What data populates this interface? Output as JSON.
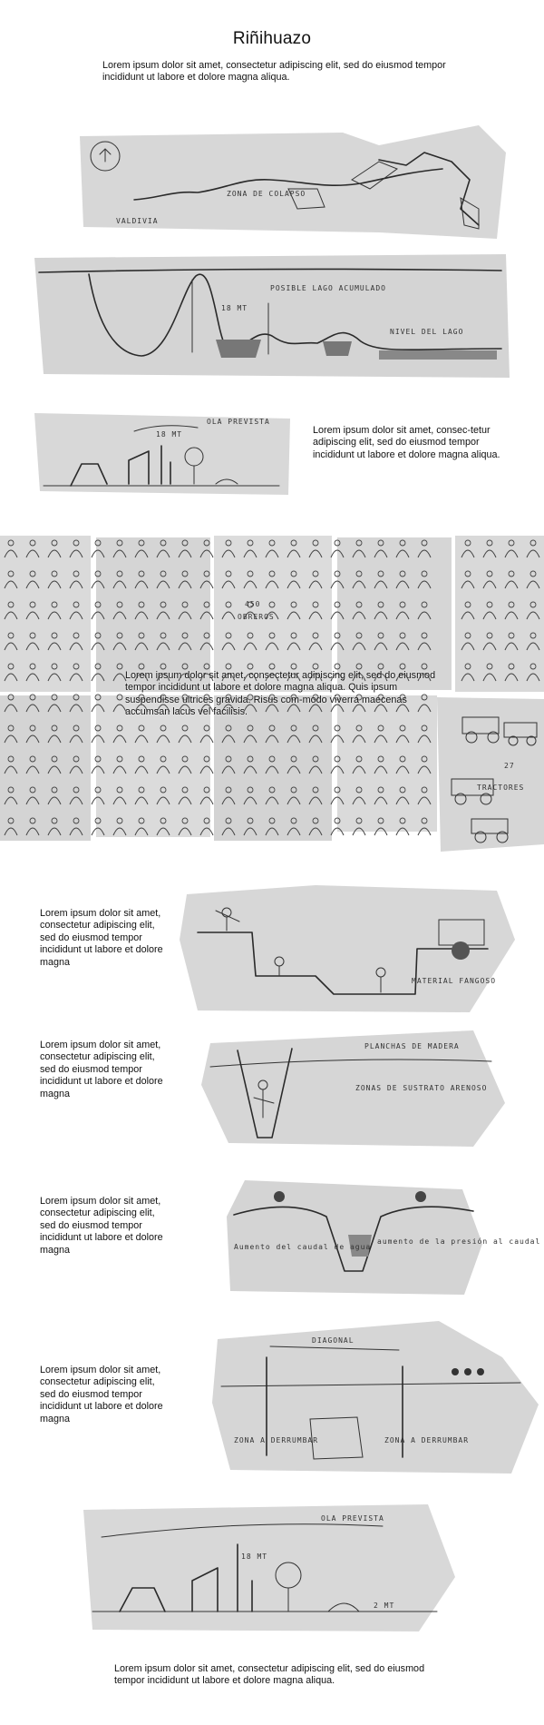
{
  "title": "Riñihuazo",
  "texts": {
    "intro": "Lorem ipsum dolor sit amet, consectetur adipiscing elit, sed do eiusmod tempor incididunt ut labore et dolore magna aliqua.",
    "wave": "Lorem ipsum dolor sit amet, consec-tetur adipiscing elit, sed do eiusmod tempor incididunt ut labore et dolore magna aliqua.",
    "crowd": "Lorem ipsum dolor sit amet, consectetur adipiscing elit, sed do eiusmod tempor incididunt ut labore et dolore magna aliqua. Quis ipsum suspendisse ultrices gravida. Risus com-modo viverra maecenas accumsan lacus vel facilisis.",
    "digging": "Lorem ipsum dolor sit amet, consectetur adipiscing elit, sed do eiusmod tempor incididunt ut labore et dolore magna",
    "trench": "Lorem ipsum dolor sit amet, consectetur adipiscing elit, sed do eiusmod tempor incididunt ut labore et dolore magna",
    "channel": "Lorem ipsum dolor sit amet, consectetur adipiscing elit, sed do eiusmod tempor incididunt ut labore et dolore magna",
    "dam": "Lorem ipsum dolor sit amet, consectetur adipiscing elit, sed do eiusmod tempor incididunt ut labore et dolore magna",
    "outro": "Lorem ipsum dolor sit amet, consectetur adipiscing elit, sed do eiusmod tempor incididunt ut labore et dolore magna aliqua."
  },
  "sketch_labels": {
    "map": [
      "VALDIVIA",
      "ZONA DE COLAPSO"
    ],
    "section": [
      "POSIBLE LAGO ACUMULADO",
      "18 MT",
      "NIVEL DEL LAGO"
    ],
    "wave_small": [
      "OLA PREVISTA",
      "18 MT"
    ],
    "crowd": [
      "450",
      "OBREROS"
    ],
    "tractors": [
      "27",
      "TRACTORES"
    ],
    "digging": [
      "MATERIAL FANGOSO"
    ],
    "trench": [
      "PLANCHAS DE MADERA",
      "ZONAS DE SUSTRATO ARENOSO"
    ],
    "channel": [
      "Aumento del caudal de agua",
      "aumento de la presión al caudal"
    ],
    "dam": [
      "DIAGONAL",
      "ZONA A DERRUMBAR",
      "ZONA A DERRUMBAR"
    ],
    "wave_large": [
      "OLA PREVISTA",
      "18 MT",
      "2 MT"
    ]
  }
}
